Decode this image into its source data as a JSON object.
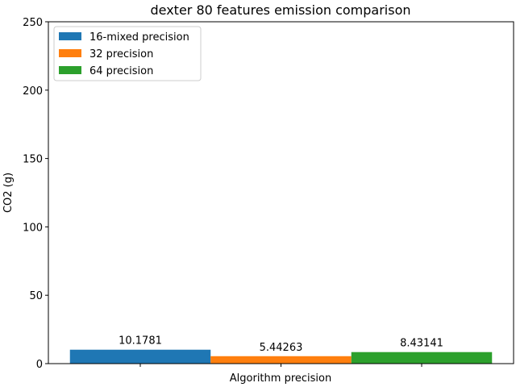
{
  "chart_data": {
    "type": "bar",
    "title": "dexter 80 features emission comparison",
    "xlabel": "Algorithm precision",
    "ylabel": "CO2 (g)",
    "ylim": [
      0,
      250
    ],
    "yticks": [
      0,
      50,
      100,
      150,
      200,
      250
    ],
    "grid": false,
    "legend_position": "top-left",
    "series": [
      {
        "name": "16-mixed precision",
        "value": 10.1781,
        "label": "10.1781",
        "color": "#1f77b4"
      },
      {
        "name": "32 precision",
        "value": 5.44263,
        "label": "5.44263",
        "color": "#ff7f0e"
      },
      {
        "name": "64 precision",
        "value": 8.43141,
        "label": "8.43141",
        "color": "#2ca02c"
      }
    ]
  }
}
